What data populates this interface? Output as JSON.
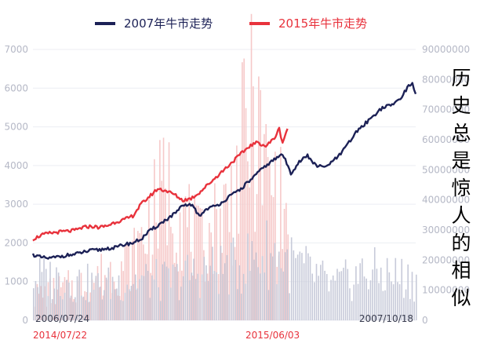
{
  "side_title": "历史总是惊人的相似",
  "colors": {
    "series_2007": "#1c2156",
    "series_2015": "#e8323c",
    "volume_2007": "#c7cad9",
    "volume_2015": "#f6c9c9",
    "grid": "#eceef3",
    "date_2007": "#3a3d50",
    "date_2015": "#e8323c"
  },
  "chart_data": {
    "type": "line",
    "legend": [
      {
        "name": "2007年牛市走势",
        "color": "#1c2156"
      },
      {
        "name": "2015年牛市走势",
        "color": "#e8323c"
      }
    ],
    "legend_position": "top-center",
    "grid": true,
    "y_left": {
      "ticks": [
        "0",
        "1000",
        "2000",
        "3000",
        "4000",
        "5000",
        "6000",
        "7000"
      ],
      "range": [
        0,
        7000
      ]
    },
    "y_right": {
      "ticks": [
        "0",
        "10000000",
        "20000000",
        "30000000",
        "40000000",
        "50000000",
        "60000000",
        "70000000",
        "80000000",
        "90000000"
      ],
      "range": [
        0,
        90000000
      ]
    },
    "x_labels_2007": [
      "2006/07/24",
      "2007/10/18"
    ],
    "x_labels_2015": [
      "2014/07/22",
      "2015/06/03"
    ],
    "series": [
      {
        "name": "2007年牛市走势",
        "axis": "left",
        "points": [
          [
            0,
            1700
          ],
          [
            5,
            1620
          ],
          [
            10,
            1600
          ],
          [
            15,
            1640
          ],
          [
            20,
            1680
          ],
          [
            25,
            1700
          ],
          [
            30,
            1760
          ],
          [
            35,
            1800
          ],
          [
            40,
            1820
          ],
          [
            45,
            1860
          ],
          [
            50,
            1880
          ],
          [
            55,
            1960
          ],
          [
            60,
            2000
          ],
          [
            65,
            2100
          ],
          [
            70,
            2300
          ],
          [
            75,
            2450
          ],
          [
            80,
            2600
          ],
          [
            85,
            2750
          ],
          [
            90,
            2950
          ],
          [
            95,
            3000
          ],
          [
            100,
            2700
          ],
          [
            105,
            2900
          ],
          [
            110,
            2950
          ],
          [
            115,
            3100
          ],
          [
            120,
            3250
          ],
          [
            125,
            3400
          ],
          [
            130,
            3600
          ],
          [
            135,
            3800
          ],
          [
            140,
            4000
          ],
          [
            145,
            4150
          ],
          [
            150,
            4300
          ],
          [
            155,
            3800
          ],
          [
            160,
            4100
          ],
          [
            165,
            4250
          ],
          [
            170,
            4000
          ],
          [
            175,
            3950
          ],
          [
            180,
            4100
          ],
          [
            185,
            4300
          ],
          [
            190,
            4600
          ],
          [
            195,
            4900
          ],
          [
            200,
            5100
          ],
          [
            205,
            5300
          ],
          [
            210,
            5500
          ],
          [
            215,
            5550
          ],
          [
            220,
            5700
          ],
          [
            225,
            6000
          ],
          [
            228,
            6150
          ],
          [
            230,
            5850
          ]
        ]
      },
      {
        "name": "2015年牛市走势",
        "axis": "left",
        "points": [
          [
            0,
            2100
          ],
          [
            5,
            2200
          ],
          [
            10,
            2250
          ],
          [
            15,
            2280
          ],
          [
            20,
            2300
          ],
          [
            25,
            2320
          ],
          [
            30,
            2400
          ],
          [
            35,
            2430
          ],
          [
            40,
            2400
          ],
          [
            45,
            2450
          ],
          [
            50,
            2550
          ],
          [
            55,
            2600
          ],
          [
            60,
            2700
          ],
          [
            65,
            3000
          ],
          [
            70,
            3200
          ],
          [
            75,
            3400
          ],
          [
            80,
            3350
          ],
          [
            85,
            3250
          ],
          [
            90,
            3100
          ],
          [
            95,
            3150
          ],
          [
            100,
            3300
          ],
          [
            105,
            3500
          ],
          [
            110,
            3700
          ],
          [
            115,
            3900
          ],
          [
            120,
            4100
          ],
          [
            125,
            4300
          ],
          [
            130,
            4500
          ],
          [
            135,
            4600
          ],
          [
            140,
            4500
          ],
          [
            145,
            4700
          ],
          [
            148,
            4950
          ],
          [
            150,
            4600
          ],
          [
            153,
            4950
          ]
        ]
      }
    ],
    "volume_2007": [
      {
        "x": 0,
        "volume": 18000000
      },
      {
        "x": 20,
        "volume": 17000000
      },
      {
        "x": 40,
        "volume": 14000000
      },
      {
        "x": 60,
        "volume": 17000000
      },
      {
        "x": 80,
        "volume": 16000000
      },
      {
        "x": 100,
        "volume": 20000000
      },
      {
        "x": 120,
        "volume": 22000000
      },
      {
        "x": 140,
        "volume": 28000000
      },
      {
        "x": 160,
        "volume": 22000000
      },
      {
        "x": 180,
        "volume": 14000000
      },
      {
        "x": 200,
        "volume": 20000000
      },
      {
        "x": 230,
        "volume": 17000000
      }
    ],
    "volume_2015": [
      {
        "x": 0,
        "volume": 10000000
      },
      {
        "x": 30,
        "volume": 15000000
      },
      {
        "x": 60,
        "volume": 25000000
      },
      {
        "x": 80,
        "volume": 55000000
      },
      {
        "x": 100,
        "volume": 30000000
      },
      {
        "x": 120,
        "volume": 50000000
      },
      {
        "x": 130,
        "volume": 85000000
      },
      {
        "x": 140,
        "volume": 60000000
      },
      {
        "x": 153,
        "volume": 40000000
      }
    ]
  }
}
